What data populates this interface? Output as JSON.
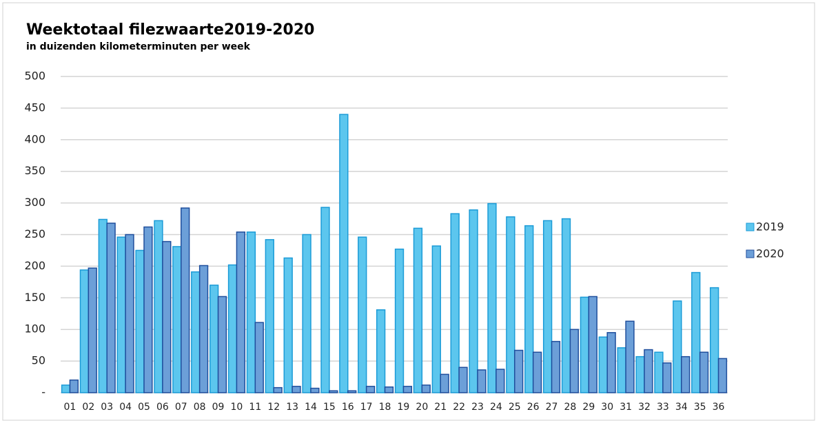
{
  "chart_data": {
    "type": "bar",
    "title": "Weektotaal filezwaarte2019-2020",
    "subtitle": "in duizenden kilometerminuten per week",
    "categories": [
      "01",
      "02",
      "03",
      "04",
      "05",
      "06",
      "07",
      "08",
      "09",
      "10",
      "11",
      "12",
      "13",
      "14",
      "15",
      "16",
      "17",
      "18",
      "19",
      "20",
      "21",
      "22",
      "23",
      "24",
      "25",
      "26",
      "27",
      "28",
      "29",
      "30",
      "31",
      "32",
      "33",
      "34",
      "35",
      "36"
    ],
    "series": [
      {
        "name": "2019",
        "color": "#5cc6ee",
        "stroke": "#1b9bd7",
        "values": [
          12,
          194,
          274,
          246,
          225,
          272,
          231,
          191,
          170,
          202,
          254,
          242,
          213,
          250,
          293,
          440,
          246,
          131,
          227,
          260,
          232,
          283,
          289,
          299,
          278,
          264,
          272,
          275,
          151,
          88,
          71,
          57,
          64,
          145,
          190,
          166
        ]
      },
      {
        "name": "2020",
        "color": "#6c9fd8",
        "stroke": "#1f4e9c",
        "values": [
          20,
          197,
          268,
          250,
          262,
          239,
          292,
          201,
          152,
          254,
          111,
          8,
          10,
          7,
          3,
          3,
          10,
          9,
          10,
          12,
          29,
          40,
          36,
          37,
          67,
          64,
          81,
          100,
          152,
          95,
          113,
          68,
          47,
          57,
          64,
          54
        ]
      }
    ],
    "ylim": [
      0,
      500
    ],
    "yticks": [
      {
        "value": 0,
        "label": "-"
      },
      50,
      100,
      150,
      200,
      250,
      300,
      350,
      400,
      450,
      500
    ],
    "grid": true,
    "legend": "right"
  }
}
